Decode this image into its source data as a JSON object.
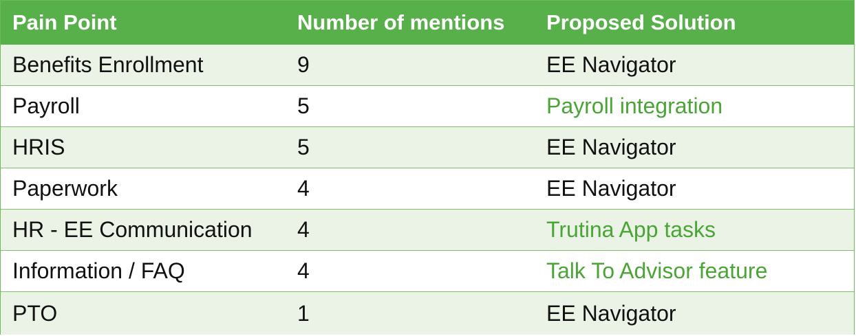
{
  "colors": {
    "header_bg": "#58b04a",
    "header_text": "#ffffff",
    "odd_row_bg": "#ebf3e7",
    "even_row_bg": "#ffffff",
    "highlight_text": "#4aa536",
    "body_text": "#111111"
  },
  "table": {
    "columns": [
      "Pain Point",
      "Number of mentions",
      "Proposed Solution"
    ],
    "rows": [
      {
        "pain_point": "Benefits Enrollment",
        "mentions": "9",
        "solution": "EE Navigator",
        "solution_highlighted": false
      },
      {
        "pain_point": "Payroll",
        "mentions": "5",
        "solution": "Payroll integration",
        "solution_highlighted": true
      },
      {
        "pain_point": "HRIS",
        "mentions": "5",
        "solution": "EE Navigator",
        "solution_highlighted": false
      },
      {
        "pain_point": "Paperwork",
        "mentions": "4",
        "solution": "EE Navigator",
        "solution_highlighted": false
      },
      {
        "pain_point": "HR - EE Communication",
        "mentions": "4",
        "solution": "Trutina App tasks",
        "solution_highlighted": true
      },
      {
        "pain_point": "Information / FAQ",
        "mentions": "4",
        "solution": "Talk To Advisor feature",
        "solution_highlighted": true
      },
      {
        "pain_point": "PTO",
        "mentions": "1",
        "solution": "EE Navigator",
        "solution_highlighted": false
      }
    ]
  }
}
